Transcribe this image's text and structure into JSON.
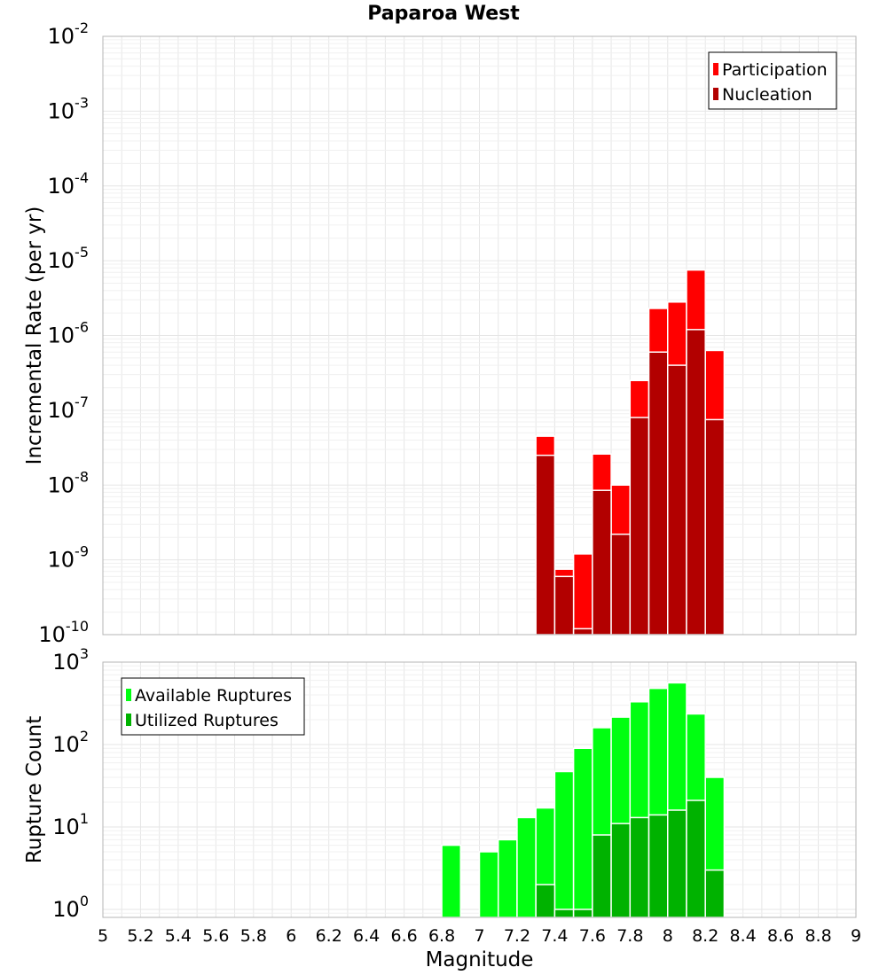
{
  "chart_data": [
    {
      "type": "bar",
      "title": "Paparoa West",
      "ylabel": "Incremental Rate (per yr)",
      "xlabel": "",
      "xlim": [
        5,
        9
      ],
      "ylim": [
        1e-10,
        0.01
      ],
      "yscale": "log",
      "y_ticks": [
        {
          "base": "10",
          "exp": "-2"
        },
        {
          "base": "10",
          "exp": "-3"
        },
        {
          "base": "10",
          "exp": "-4"
        },
        {
          "base": "10",
          "exp": "-5"
        },
        {
          "base": "10",
          "exp": "-6"
        },
        {
          "base": "10",
          "exp": "-7"
        },
        {
          "base": "10",
          "exp": "-8"
        },
        {
          "base": "10",
          "exp": "-9"
        },
        {
          "base": "10",
          "exp": "-10"
        }
      ],
      "legend_position": "top-right",
      "x": [
        7.35,
        7.45,
        7.55,
        7.65,
        7.75,
        7.85,
        7.95,
        8.05,
        8.15,
        8.25
      ],
      "series": [
        {
          "name": "Participation",
          "color": "#ff0000",
          "values": [
            4.5e-08,
            7.5e-10,
            1.2e-09,
            2.6e-08,
            1e-08,
            2.5e-07,
            2.3e-06,
            2.8e-06,
            7.5e-06,
            6.3e-07
          ]
        },
        {
          "name": "Nucleation",
          "color": "#b20000",
          "values": [
            2.5e-08,
            6e-10,
            1.2e-10,
            8.5e-09,
            2.2e-09,
            8e-08,
            6e-07,
            4e-07,
            1.2e-06,
            7.5e-08
          ]
        }
      ],
      "grid": true
    },
    {
      "type": "bar",
      "title": "",
      "ylabel": "Rupture Count",
      "xlabel": "Magnitude",
      "xlim": [
        5,
        9
      ],
      "ylim": [
        0.8,
        1000
      ],
      "yscale": "log",
      "y_ticks": [
        {
          "base": "10",
          "exp": "3"
        },
        {
          "base": "10",
          "exp": "2"
        },
        {
          "base": "10",
          "exp": "1"
        },
        {
          "base": "10",
          "exp": "0"
        }
      ],
      "x_ticks": [
        "5",
        "5.2",
        "5.4",
        "5.6",
        "5.8",
        "6",
        "6.2",
        "6.4",
        "6.6",
        "6.8",
        "7",
        "7.2",
        "7.4",
        "7.6",
        "7.8",
        "8",
        "8.2",
        "8.4",
        "8.6",
        "8.8",
        "9"
      ],
      "legend_position": "top-left",
      "x": [
        6.85,
        7.05,
        7.15,
        7.25,
        7.35,
        7.45,
        7.55,
        7.65,
        7.75,
        7.85,
        7.95,
        8.05,
        8.15,
        8.25
      ],
      "series": [
        {
          "name": "Available Ruptures",
          "color": "#00ff11",
          "values": [
            6,
            5,
            7,
            13,
            17,
            47,
            90,
            160,
            215,
            330,
            480,
            560,
            235,
            40
          ]
        },
        {
          "name": "Utilized Ruptures",
          "color": "#00b200",
          "values": [
            null,
            null,
            null,
            null,
            2,
            1,
            1,
            8,
            11,
            13,
            14,
            16,
            21,
            3
          ]
        }
      ],
      "grid": true
    }
  ]
}
